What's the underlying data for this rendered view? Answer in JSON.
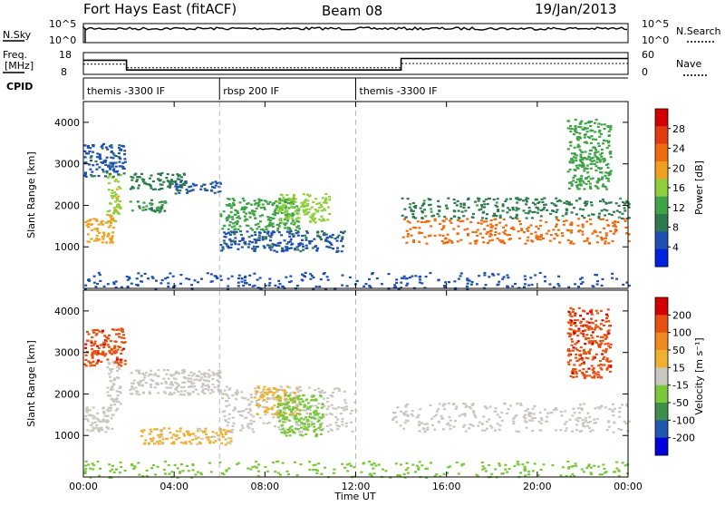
{
  "header": {
    "station": "Fort Hays East (fitACF)",
    "beam": "Beam 08",
    "date": "19/Jan/2013"
  },
  "top_panels": {
    "nsky_label": "N.Sky",
    "nsky_ticks": [
      "10^5",
      "10^0"
    ],
    "nsearch_label": "N.Search",
    "nsearch_ticks": [
      "10^5",
      "10^0"
    ],
    "freq_label": "Freq.",
    "freq_unit": "[MHz]",
    "freq_ticks": [
      "18",
      "8"
    ],
    "nave_label": "Nave",
    "nave_ticks": [
      "60",
      "0"
    ],
    "cpid_label": "CPID",
    "cpid_segments": [
      {
        "label": "themis -3300 IF",
        "start": 0,
        "end": 6
      },
      {
        "label": "rbsp 200 IF",
        "start": 6,
        "end": 12
      },
      {
        "label": "themis -3300 IF",
        "start": 12,
        "end": 24
      }
    ]
  },
  "colors": {
    "power_scale": [
      "#0022dd",
      "#1f4fb0",
      "#2e7a4e",
      "#3fa348",
      "#8fcf3c",
      "#f0a020",
      "#f06a10",
      "#e43a10",
      "#d40000"
    ],
    "velocity_scale": [
      "#0000dd",
      "#1f58b0",
      "#3f8f4a",
      "#79c83b",
      "#c8c8c0",
      "#f0b030",
      "#ee8a20",
      "#e85010",
      "#d40000"
    ]
  },
  "chart_data": [
    {
      "type": "heatmap",
      "title": "Power",
      "xlabel": "",
      "ylabel": "Slant Range [km]",
      "xlim": [
        0,
        24
      ],
      "ylim": [
        0,
        4500
      ],
      "x_ticks": [
        "00:00",
        "04:00",
        "08:00",
        "12:00",
        "16:00",
        "20:00",
        "00:00"
      ],
      "y_ticks": [
        1000,
        2000,
        3000,
        4000
      ],
      "colorbar": {
        "label": "Power [dB]",
        "ticks": [
          "28",
          "24",
          "20",
          "16",
          "12",
          "8",
          "4"
        ],
        "range": [
          0,
          30
        ]
      },
      "regions": [
        {
          "x": [
            0.0,
            1.3
          ],
          "y": [
            1100,
            1700
          ],
          "v": 18
        },
        {
          "x": [
            1.0,
            1.6
          ],
          "y": [
            1600,
            2800
          ],
          "v": 16
        },
        {
          "x": [
            0.0,
            1.8
          ],
          "y": [
            2700,
            3500
          ],
          "v": 6
        },
        {
          "x": [
            2.0,
            4.5
          ],
          "y": [
            2400,
            2800
          ],
          "v": 8
        },
        {
          "x": [
            2.0,
            3.6
          ],
          "y": [
            1850,
            2150
          ],
          "v": 10
        },
        {
          "x": [
            4.0,
            6.0
          ],
          "y": [
            2300,
            2600
          ],
          "v": 6
        },
        {
          "x": [
            6.0,
            9.5
          ],
          "y": [
            1400,
            2200
          ],
          "v": 12
        },
        {
          "x": [
            8.5,
            10.8
          ],
          "y": [
            1600,
            2300
          ],
          "v": 15
        },
        {
          "x": [
            6.0,
            11.5
          ],
          "y": [
            900,
            1400
          ],
          "v": 6
        },
        {
          "x": [
            14.0,
            24.0
          ],
          "y": [
            1100,
            1700
          ],
          "v": 22
        },
        {
          "x": [
            14.0,
            24.0
          ],
          "y": [
            1700,
            2200
          ],
          "v": 9
        },
        {
          "x": [
            21.3,
            23.2
          ],
          "y": [
            2400,
            4100
          ],
          "v": 12
        },
        {
          "x": [
            0.0,
            24.0
          ],
          "y": [
            0,
            400
          ],
          "v": 5
        }
      ]
    },
    {
      "type": "heatmap",
      "title": "Velocity",
      "xlabel": "Time UT",
      "ylabel": "Slant Range [km]",
      "xlim": [
        0,
        24
      ],
      "ylim": [
        0,
        4500
      ],
      "x_ticks": [
        "00:00",
        "04:00",
        "08:00",
        "12:00",
        "16:00",
        "20:00",
        "00:00"
      ],
      "y_ticks": [
        1000,
        2000,
        3000,
        4000
      ],
      "colorbar": {
        "label": "Velocity [m s⁻¹]",
        "ticks": [
          "200",
          "100",
          "50",
          "15",
          "-15",
          "-50",
          "-100",
          "-200"
        ],
        "range": [
          -250,
          250
        ]
      },
      "regions": [
        {
          "x": [
            0.0,
            1.3
          ],
          "y": [
            1100,
            1700
          ],
          "v": 0
        },
        {
          "x": [
            1.0,
            1.6
          ],
          "y": [
            1600,
            2800
          ],
          "v": 0
        },
        {
          "x": [
            0.0,
            1.8
          ],
          "y": [
            2700,
            3600
          ],
          "v": 180
        },
        {
          "x": [
            2.0,
            6.0
          ],
          "y": [
            2000,
            2600
          ],
          "v": 0
        },
        {
          "x": [
            6.0,
            12.0
          ],
          "y": [
            1100,
            2200
          ],
          "v": 0
        },
        {
          "x": [
            2.5,
            6.5
          ],
          "y": [
            800,
            1200
          ],
          "v": 40
        },
        {
          "x": [
            7.5,
            9.5
          ],
          "y": [
            1500,
            2200
          ],
          "v": 40
        },
        {
          "x": [
            8.5,
            10.5
          ],
          "y": [
            1000,
            2000
          ],
          "v": -50
        },
        {
          "x": [
            13.5,
            24.0
          ],
          "y": [
            1100,
            1800
          ],
          "v": 0
        },
        {
          "x": [
            21.3,
            23.2
          ],
          "y": [
            2400,
            4100
          ],
          "v": 180
        },
        {
          "x": [
            0.0,
            24.0
          ],
          "y": [
            0,
            400
          ],
          "v": -60
        }
      ]
    }
  ]
}
